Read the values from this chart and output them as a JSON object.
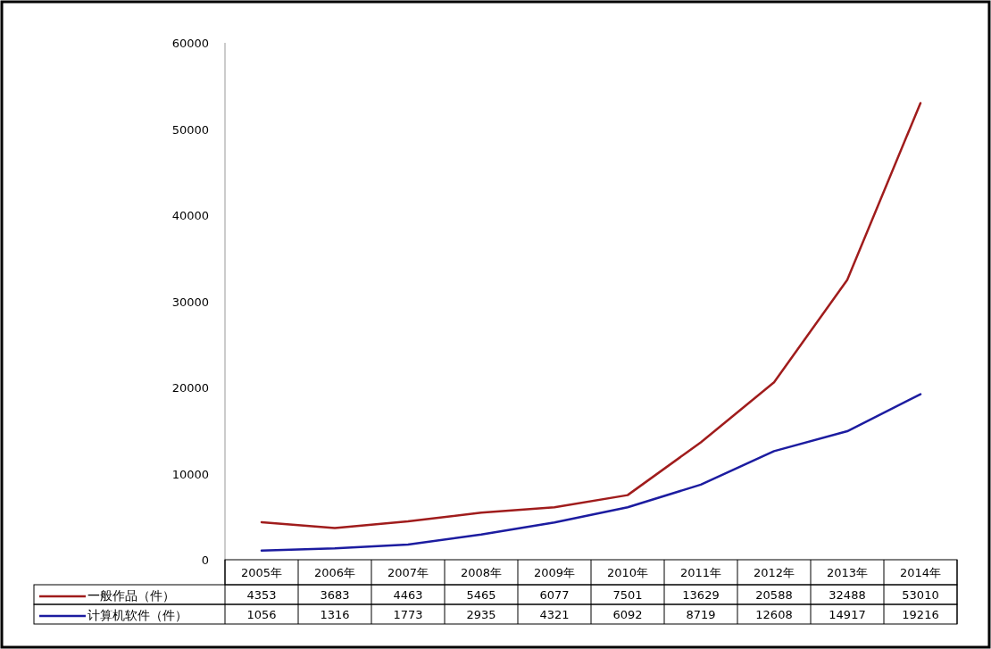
{
  "chart_data": {
    "type": "line",
    "categories": [
      "2005年",
      "2006年",
      "2007年",
      "2008年",
      "2009年",
      "2010年",
      "2011年",
      "2012年",
      "2013年",
      "2014年"
    ],
    "series": [
      {
        "name": "一般作品（件）",
        "color": "#a01c1c",
        "values": [
          4353,
          3683,
          4463,
          5465,
          6077,
          7501,
          13629,
          20588,
          32488,
          53010
        ]
      },
      {
        "name": "计算机软件（件）",
        "color": "#1c1ca0",
        "values": [
          1056,
          1316,
          1773,
          2935,
          4321,
          6092,
          8719,
          12608,
          14917,
          19216
        ]
      }
    ],
    "ylim": [
      0,
      60000
    ],
    "yticks": [
      0,
      10000,
      20000,
      30000,
      40000,
      50000,
      60000
    ],
    "marker": "none",
    "data_labels": true,
    "legend": "bottom"
  }
}
